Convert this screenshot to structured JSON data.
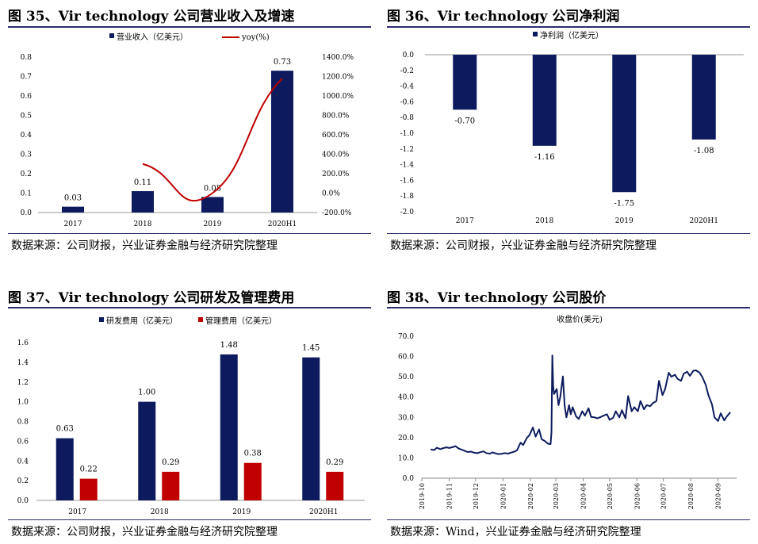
{
  "colors": {
    "navy": "#0d1b5e",
    "red": "#c00000",
    "rule": "#2b2d6e"
  },
  "panels": [
    {
      "title": "图 35、Vir technology 公司营业收入及增速",
      "source": "数据来源：公司财报，兴业证券金融与经济研究院整理"
    },
    {
      "title": "图 36、Vir technology 公司净利润",
      "source": "数据来源：公司财报，兴业证券金融与经济研究院整理"
    },
    {
      "title": "图 37、Vir technology 公司研发及管理费用",
      "source": "数据来源：公司财报，兴业证券金融与经济研究院整理"
    },
    {
      "title": "图 38、Vir technology 公司股价",
      "source": "数据来源：Wind，兴业证券金融与经济研究院整理"
    }
  ],
  "chart_data": [
    {
      "type": "bar",
      "categories": [
        "2017",
        "2018",
        "2019",
        "2020H1"
      ],
      "series": [
        {
          "name": "营业收入（亿美元）",
          "values": [
            0.03,
            0.11,
            0.08,
            0.73
          ],
          "labels": [
            "0.03",
            "0.11",
            "0.08",
            "0.73"
          ],
          "color": "#0d1b5e"
        },
        {
          "name": "yoy(%)",
          "kind": "line",
          "axis": "right",
          "values": [
            null,
            300,
            0,
            1180
          ],
          "color": "#c00000"
        }
      ],
      "ylim": [
        0,
        0.8
      ],
      "yticks": [
        "0.0",
        "0.1",
        "0.2",
        "0.3",
        "0.4",
        "0.5",
        "0.6",
        "0.7",
        "0.8"
      ],
      "y2lim": [
        -200,
        1400
      ],
      "y2ticks": [
        "-200.0%",
        "0.0%",
        "200.0%",
        "400.0%",
        "600.0%",
        "800.0%",
        "1000.0%",
        "1200.0%",
        "1400.0%"
      ],
      "legend": "top"
    },
    {
      "type": "bar",
      "categories": [
        "2017",
        "2018",
        "2019",
        "2020H1"
      ],
      "series": [
        {
          "name": "净利润（亿美元）",
          "values": [
            -0.7,
            -1.16,
            -1.75,
            -1.08
          ],
          "labels": [
            "-0.70",
            "-1.16",
            "-1.75",
            "-1.08"
          ],
          "color": "#0d1b5e"
        }
      ],
      "ylim": [
        -2.0,
        0.0
      ],
      "yticks": [
        "0.0",
        "-0.2",
        "-0.4",
        "-0.6",
        "-0.8",
        "-1.0",
        "-1.2",
        "-1.4",
        "-1.6",
        "-1.8",
        "-2.0"
      ],
      "legend": "top"
    },
    {
      "type": "bar",
      "categories": [
        "2017",
        "2018",
        "2019",
        "2020H1"
      ],
      "series": [
        {
          "name": "研发费用（亿美元）",
          "values": [
            0.63,
            1.0,
            1.48,
            1.45
          ],
          "labels": [
            "0.63",
            "1.00",
            "1.48",
            "1.45"
          ],
          "color": "#0d1b5e"
        },
        {
          "name": "管理费用（亿美元）",
          "values": [
            0.22,
            0.29,
            0.38,
            0.29
          ],
          "labels": [
            "0.22",
            "0.29",
            "0.38",
            "0.29"
          ],
          "color": "#c00000"
        }
      ],
      "ylim": [
        0,
        1.6
      ],
      "yticks": [
        "0.0",
        "0.2",
        "0.4",
        "0.6",
        "0.8",
        "1.0",
        "1.2",
        "1.4",
        "1.6"
      ],
      "legend": "top"
    },
    {
      "type": "line",
      "title": "收盘价(美元)",
      "ylim": [
        0,
        70
      ],
      "yticks": [
        "0.0",
        "10.0",
        "20.0",
        "30.0",
        "40.0",
        "50.0",
        "60.0",
        "70.0"
      ],
      "xticks": [
        "2019-10",
        "2019-11",
        "2019-12",
        "2020-01",
        "2020-02",
        "2020-03",
        "2020-04",
        "2020-05",
        "2020-06",
        "2020-07",
        "2020-08",
        "2020-09"
      ],
      "series": [
        {
          "name": "收盘价(美元)",
          "color": "#0d1b5e",
          "x": [
            "2019-10-11",
            "2019-10-15",
            "2019-10-18",
            "2019-10-22",
            "2019-10-25",
            "2019-10-29",
            "2019-11-01",
            "2019-11-05",
            "2019-11-08",
            "2019-11-12",
            "2019-11-15",
            "2019-11-19",
            "2019-11-22",
            "2019-11-26",
            "2019-11-29",
            "2019-12-03",
            "2019-12-06",
            "2019-12-10",
            "2019-12-13",
            "2019-12-17",
            "2019-12-20",
            "2019-12-24",
            "2019-12-27",
            "2019-12-31",
            "2020-01-03",
            "2020-01-07",
            "2020-01-10",
            "2020-01-14",
            "2020-01-17",
            "2020-01-21",
            "2020-01-24",
            "2020-01-28",
            "2020-01-31",
            "2020-02-04",
            "2020-02-07",
            "2020-02-11",
            "2020-02-14",
            "2020-02-18",
            "2020-02-21",
            "2020-02-24",
            "2020-02-25",
            "2020-02-26",
            "2020-02-27",
            "2020-02-28",
            "2020-03-02",
            "2020-03-04",
            "2020-03-06",
            "2020-03-09",
            "2020-03-11",
            "2020-03-13",
            "2020-03-16",
            "2020-03-18",
            "2020-03-20",
            "2020-03-24",
            "2020-03-27",
            "2020-03-31",
            "2020-04-03",
            "2020-04-07",
            "2020-04-10",
            "2020-04-14",
            "2020-04-17",
            "2020-04-21",
            "2020-04-24",
            "2020-04-28",
            "2020-05-01",
            "2020-05-05",
            "2020-05-08",
            "2020-05-12",
            "2020-05-15",
            "2020-05-19",
            "2020-05-22",
            "2020-05-26",
            "2020-05-29",
            "2020-06-02",
            "2020-06-05",
            "2020-06-09",
            "2020-06-12",
            "2020-06-16",
            "2020-06-19",
            "2020-06-23",
            "2020-06-26",
            "2020-06-30",
            "2020-07-03",
            "2020-07-07",
            "2020-07-10",
            "2020-07-14",
            "2020-07-17",
            "2020-07-21",
            "2020-07-24",
            "2020-07-28",
            "2020-07-31",
            "2020-08-04",
            "2020-08-07",
            "2020-08-11",
            "2020-08-14",
            "2020-08-18",
            "2020-08-21",
            "2020-08-25",
            "2020-08-28",
            "2020-09-01",
            "2020-09-04",
            "2020-09-08",
            "2020-09-11",
            "2020-09-15"
          ],
          "y": [
            14.2,
            13.9,
            15.0,
            14.3,
            14.8,
            15.2,
            14.9,
            15.3,
            15.8,
            14.6,
            14.1,
            13.4,
            12.9,
            13.1,
            12.6,
            12.3,
            12.8,
            13.2,
            12.4,
            12.1,
            12.7,
            12.2,
            11.9,
            12.0,
            12.4,
            12.1,
            12.6,
            13.1,
            13.8,
            17.5,
            16.4,
            19.8,
            21.2,
            25.0,
            20.5,
            24.0,
            19.2,
            18.2,
            17.0,
            16.8,
            22.5,
            60.5,
            45.0,
            41.5,
            44.0,
            36.0,
            40.0,
            50.2,
            35.5,
            30.0,
            36.0,
            31.5,
            35.0,
            30.5,
            29.2,
            33.0,
            30.8,
            34.5,
            30.2,
            30.0,
            29.5,
            30.2,
            30.8,
            31.5,
            28.8,
            29.8,
            33.0,
            30.0,
            33.5,
            29.5,
            40.5,
            33.0,
            35.0,
            33.0,
            38.0,
            34.0,
            36.0,
            35.5,
            37.0,
            38.0,
            48.0,
            41.0,
            44.0,
            52.0,
            50.0,
            51.0,
            49.0,
            48.0,
            51.5,
            52.5,
            50.5,
            53.0,
            53.2,
            52.0,
            50.0,
            46.0,
            41.0,
            36.5,
            30.0,
            28.2,
            32.0,
            28.5,
            30.5,
            32.5
          ]
        }
      ]
    }
  ]
}
